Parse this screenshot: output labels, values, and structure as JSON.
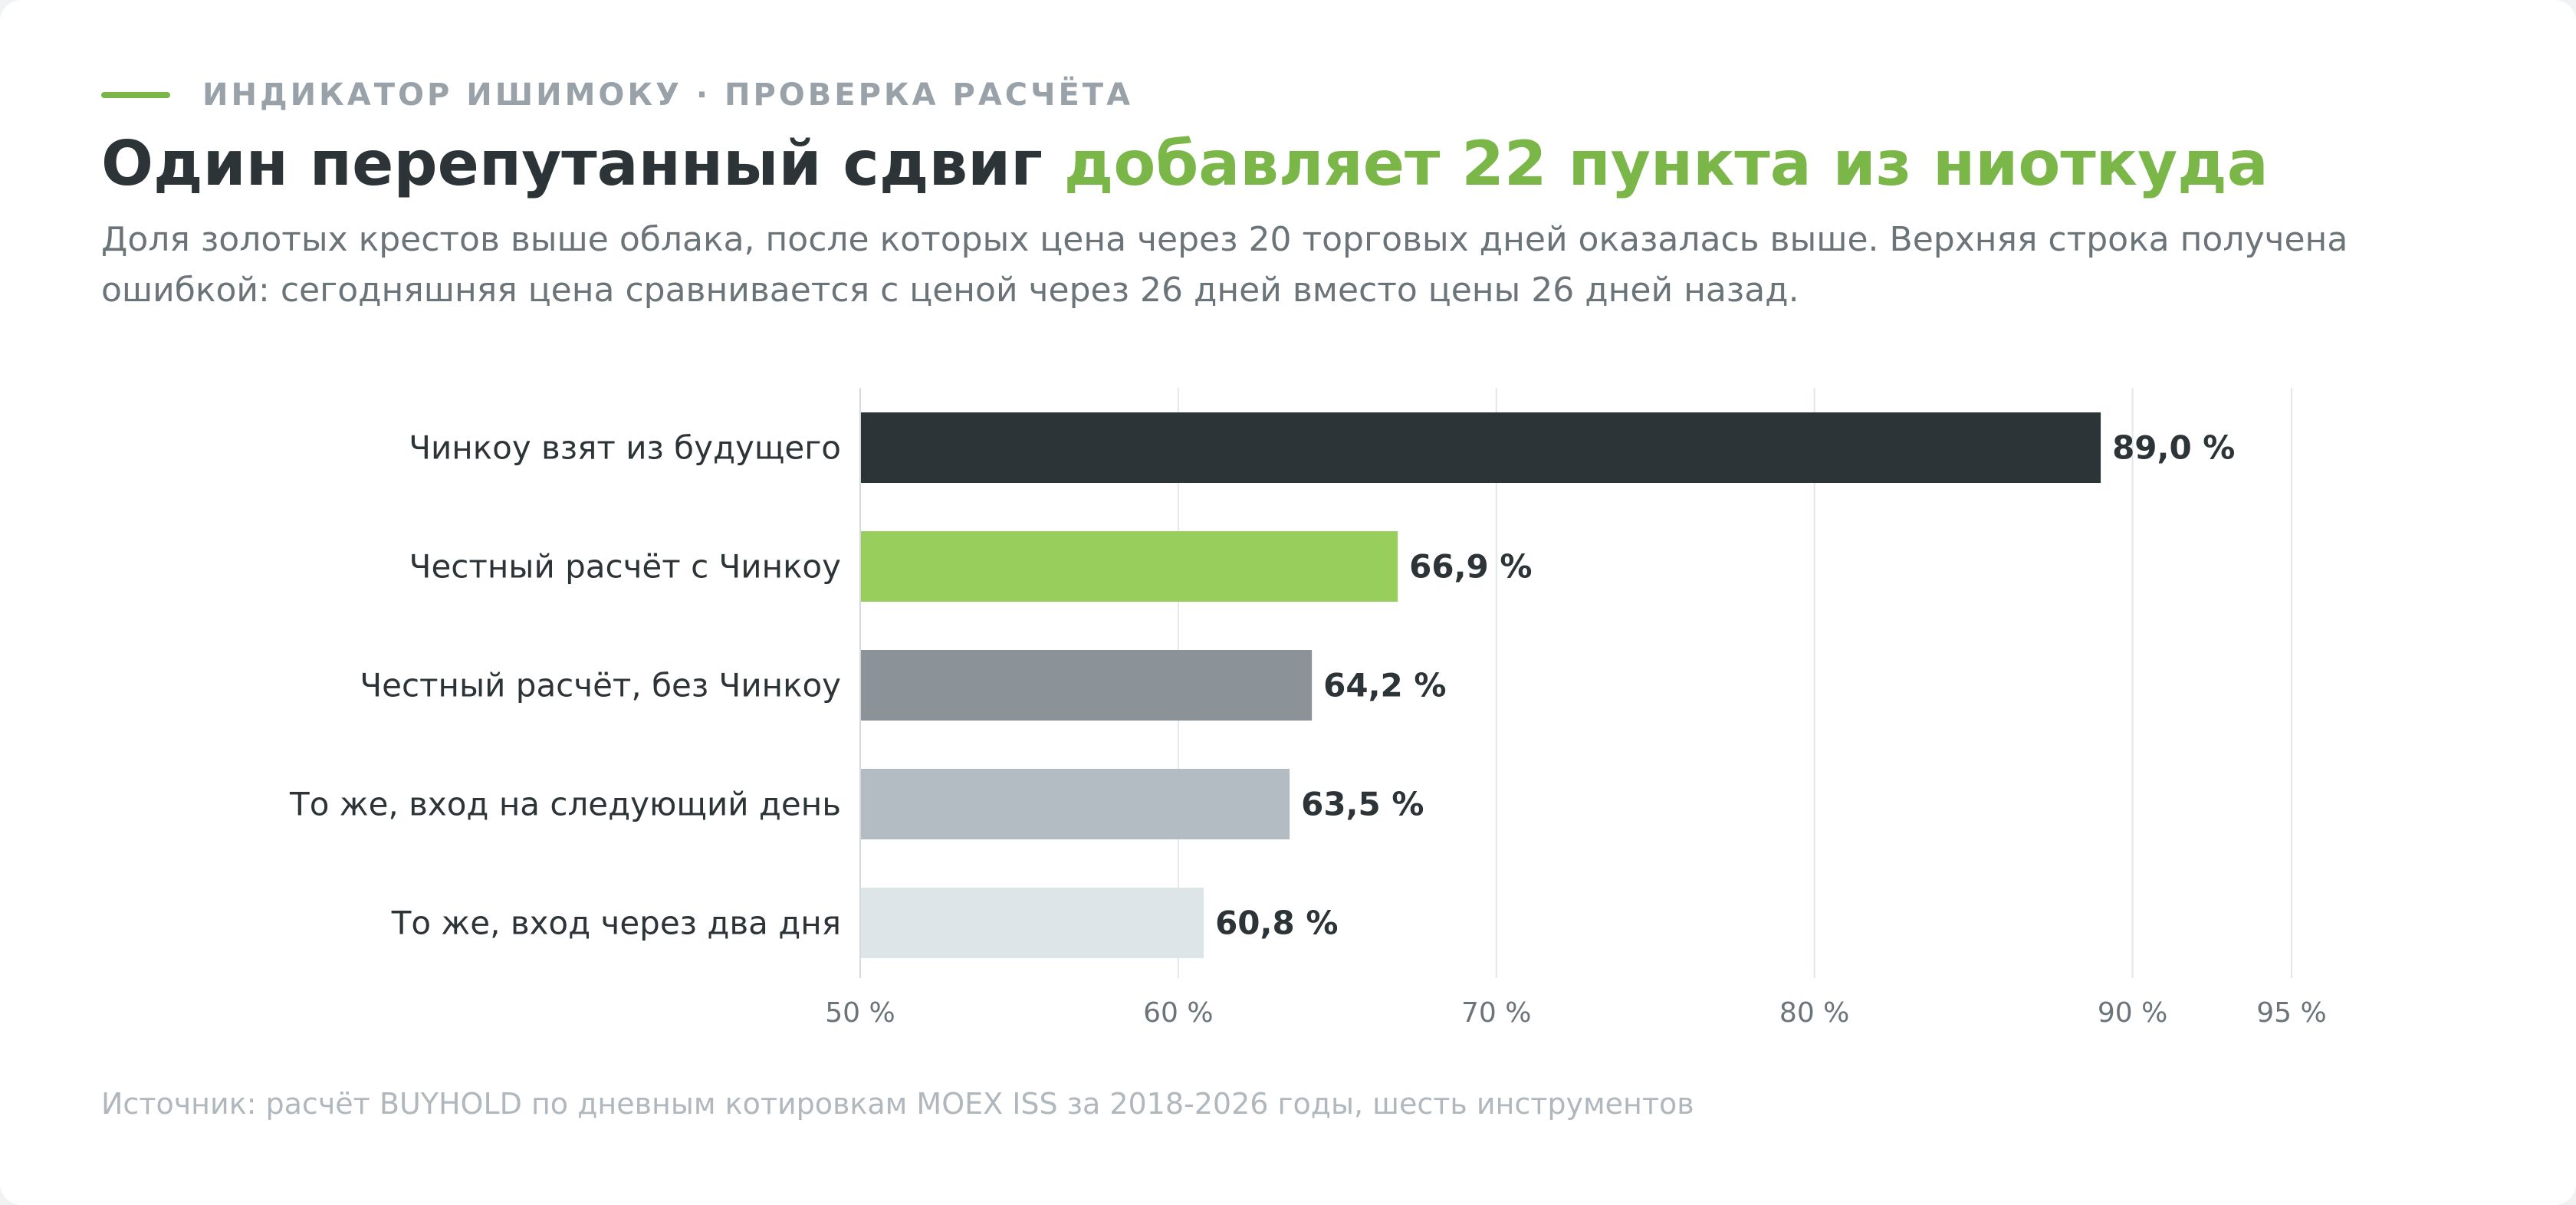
{
  "header": {
    "eyebrow": "ИНДИКАТОР ИШИМОКУ · ПРОВЕРКА РАСЧЁТА",
    "title_dark": "Один перепутанный сдвиг ",
    "title_accent": "добавляет 22 пункта из ниоткуда",
    "subtitle": "Доля золотых крестов выше облака, после которых цена через 20 торговых дней оказалась выше. Верхняя строка получена ошибкой: сегодняшняя цена сравнивается с ценой через 26 дней вместо цены 26 дней назад."
  },
  "colors": {
    "accent": "#7ab648",
    "dark": "#2d3437",
    "grid": "#e3e7ea",
    "muted_text": "#6b7479"
  },
  "chart_data": {
    "type": "bar",
    "orientation": "horizontal",
    "categories": [
      "Чинкоу взят из будущего",
      "Честный расчёт с Чинкоу",
      "Честный расчёт, без Чинкоу",
      "То же, вход на следующий день",
      "То же, вход через два дня"
    ],
    "values": [
      89.0,
      66.9,
      64.2,
      63.5,
      60.8
    ],
    "value_labels": [
      "89,0 %",
      "66,9 %",
      "64,2 %",
      "63,5 %",
      "60,8 %"
    ],
    "bar_colors": [
      "#2d3437",
      "#97ce5c",
      "#8b9399",
      "#b2bcc2",
      "#dde5e8"
    ],
    "x_ticks": [
      50,
      60,
      70,
      80,
      90,
      95
    ],
    "x_tick_labels": [
      "50 %",
      "60 %",
      "70 %",
      "80 %",
      "90 %",
      "95 %"
    ],
    "xlim": [
      50,
      95
    ],
    "grid": true,
    "legend": "none"
  },
  "footer": {
    "source": "Источник: расчёт BUYHOLD по дневным котировкам MOEX ISS за 2018-2026 годы, шесть инструментов"
  }
}
